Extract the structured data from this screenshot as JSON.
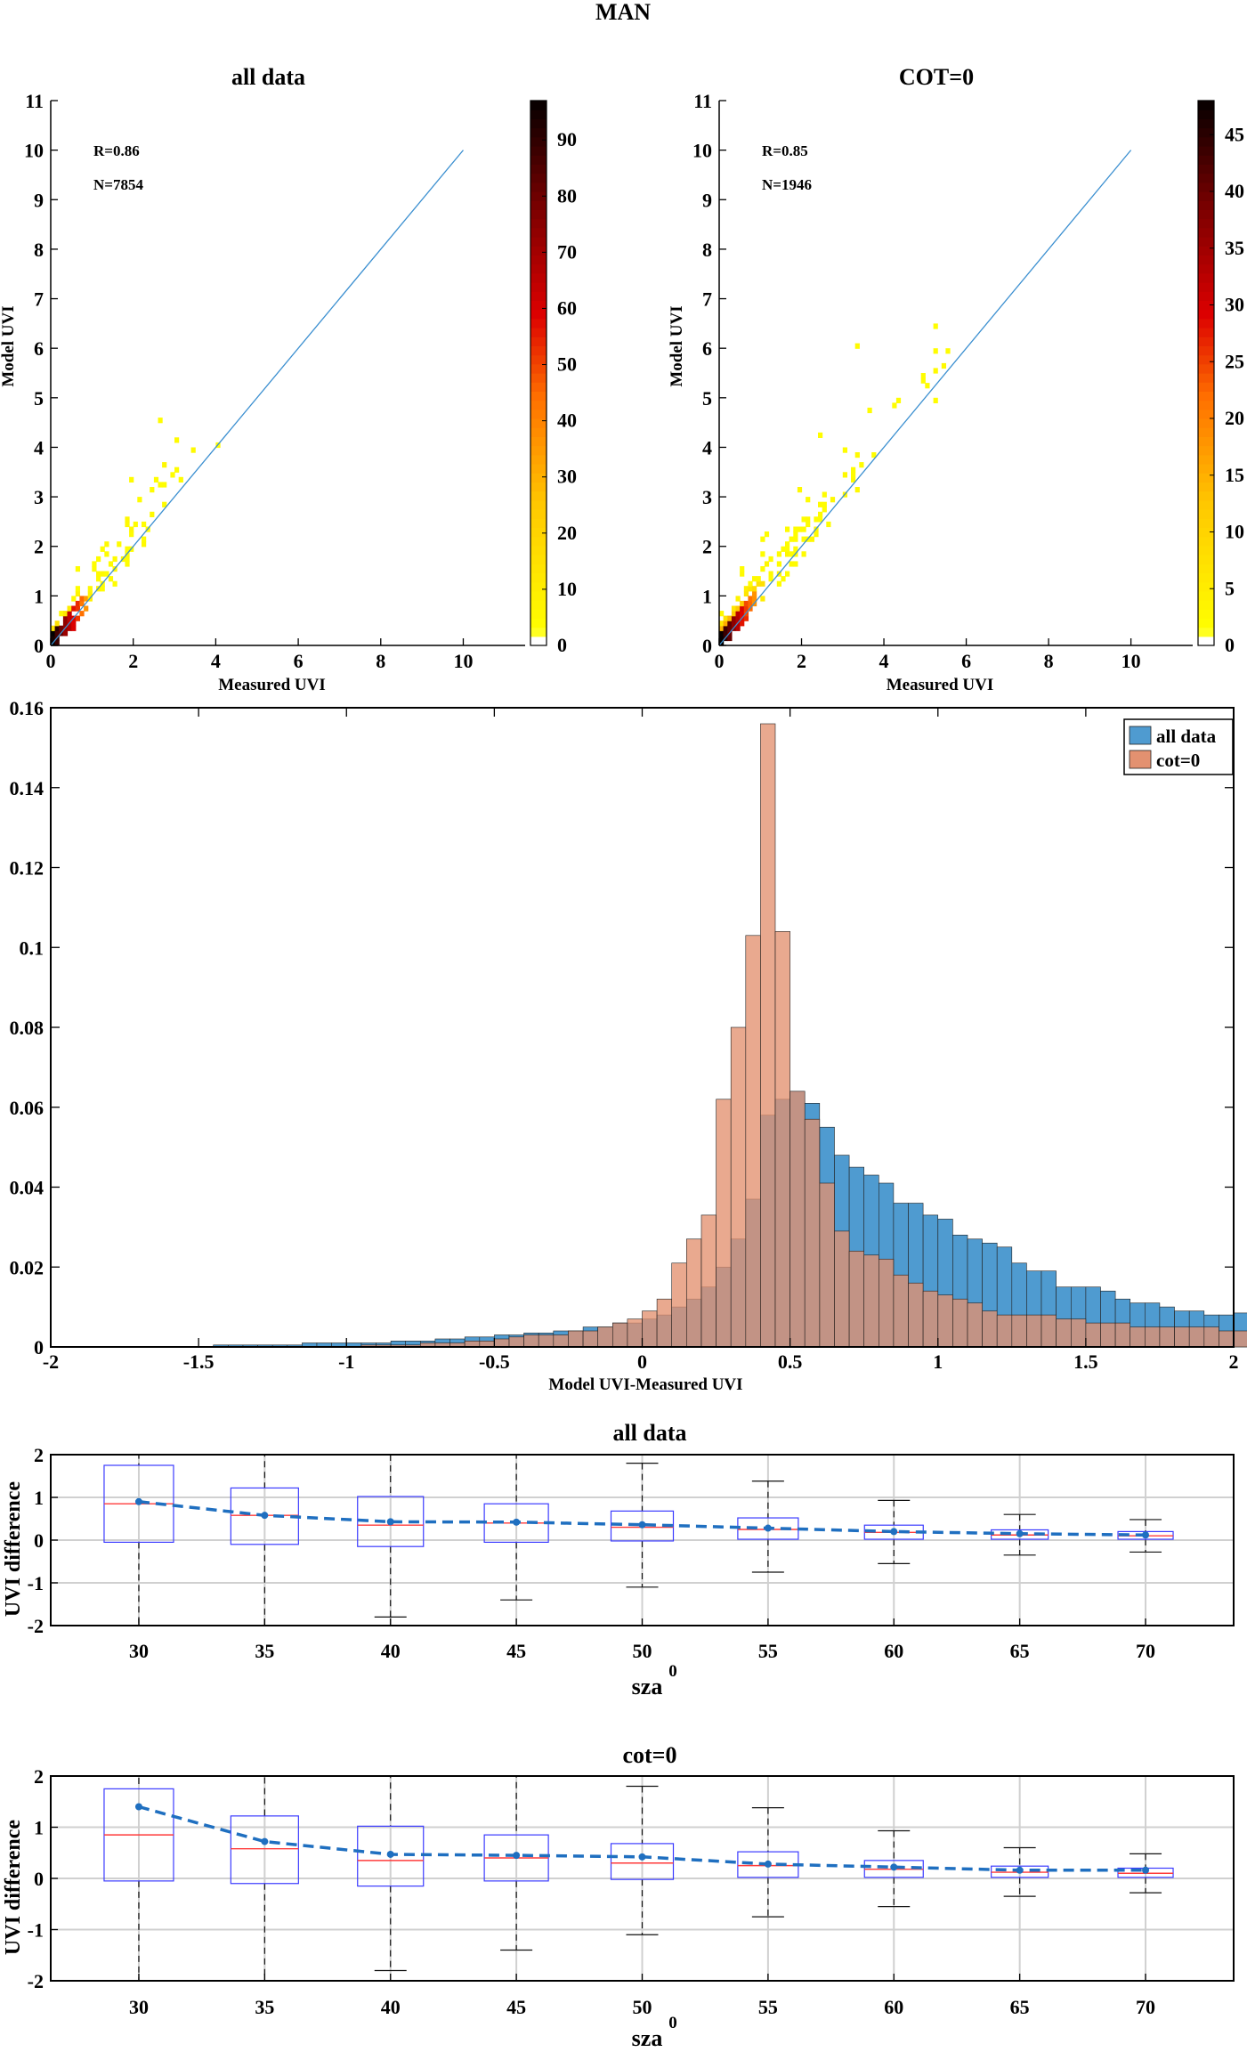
{
  "figure_title": "MAN",
  "chart_data": [
    {
      "type": "heatmap",
      "title": "all data",
      "xlabel": "Measured UVI",
      "ylabel": "Model UVI",
      "xlim": [
        0,
        11.5
      ],
      "ylim": [
        0,
        11
      ],
      "xticks": [
        "0",
        "2",
        "4",
        "6",
        "8",
        "10"
      ],
      "yticks": [
        "0",
        "1",
        "2",
        "3",
        "4",
        "5",
        "6",
        "7",
        "8",
        "9",
        "10",
        "11"
      ],
      "annotations": [
        "R=0.86",
        "N=7854"
      ],
      "colorbar": {
        "min": 0,
        "max": 97,
        "ticks": [
          "0",
          "10",
          "20",
          "30",
          "40",
          "50",
          "60",
          "70",
          "80",
          "90"
        ]
      },
      "one_to_one_line": [
        [
          0,
          0
        ],
        [
          10,
          10
        ]
      ],
      "grid": false
    },
    {
      "type": "heatmap",
      "title": "COT=0",
      "xlabel": "Measured UVI",
      "ylabel": "Model UVI",
      "xlim": [
        0,
        11.5
      ],
      "ylim": [
        0,
        11
      ],
      "xticks": [
        "0",
        "2",
        "4",
        "6",
        "8",
        "10"
      ],
      "yticks": [
        "0",
        "1",
        "2",
        "3",
        "4",
        "5",
        "6",
        "7",
        "8",
        "9",
        "10",
        "11"
      ],
      "annotations": [
        "R=0.85",
        "N=1946"
      ],
      "colorbar": {
        "min": 0,
        "max": 48,
        "ticks": [
          "0",
          "5",
          "10",
          "15",
          "20",
          "25",
          "30",
          "35",
          "40",
          "45"
        ]
      },
      "one_to_one_line": [
        [
          0,
          0
        ],
        [
          10,
          10
        ]
      ],
      "grid": false
    },
    {
      "type": "bar",
      "title": "",
      "xlabel": "Model UVI-Measured UVI",
      "ylabel": "",
      "xlim": [
        -2,
        2
      ],
      "ylim": [
        0,
        0.16
      ],
      "bin_width": 0.05,
      "xticks": [
        "-2",
        "-1.5",
        "-1",
        "-0.5",
        "0",
        "0.5",
        "1",
        "1.5",
        "2"
      ],
      "yticks": [
        "0",
        "0.02",
        "0.04",
        "0.06",
        "0.08",
        "0.1",
        "0.12",
        "0.14",
        "0.16"
      ],
      "legend_position": "top-right",
      "series": [
        {
          "name": "all data",
          "color": "#4f9bd0",
          "values": [
            0,
            0,
            0,
            0,
            0,
            0,
            0,
            0,
            0,
            0,
            0,
            0.0005,
            0.0005,
            0.0005,
            0.0005,
            0.0005,
            0.0005,
            0.001,
            0.001,
            0.001,
            0.001,
            0.001,
            0.001,
            0.0015,
            0.0015,
            0.0015,
            0.002,
            0.002,
            0.0025,
            0.0025,
            0.003,
            0.003,
            0.0035,
            0.0035,
            0.004,
            0.004,
            0.005,
            0.005,
            0.006,
            0.006,
            0.007,
            0.008,
            0.01,
            0.012,
            0.015,
            0.02,
            0.027,
            0.037,
            0.058,
            0.062,
            0.064,
            0.061,
            0.055,
            0.048,
            0.045,
            0.043,
            0.041,
            0.036,
            0.036,
            0.033,
            0.032,
            0.028,
            0.027,
            0.026,
            0.025,
            0.021,
            0.019,
            0.019,
            0.015,
            0.015,
            0.015,
            0.014,
            0.012,
            0.011,
            0.011,
            0.01,
            0.009,
            0.009,
            0.008,
            0.008,
            0.0085,
            0.007,
            0.007,
            0.0065,
            0.006,
            0.0055,
            0.0055,
            0.005,
            0.0045,
            0.0045
          ]
        },
        {
          "name": "cot=0",
          "color": "#e39170",
          "values": [
            0,
            0,
            0,
            0,
            0,
            0,
            0,
            0,
            0,
            0,
            0,
            0,
            0,
            0,
            0,
            0,
            0,
            0,
            0,
            0,
            0,
            0.0005,
            0.0005,
            0.0005,
            0.0005,
            0.001,
            0.001,
            0.001,
            0.0015,
            0.0015,
            0.002,
            0.0025,
            0.003,
            0.003,
            0.003,
            0.004,
            0.004,
            0.005,
            0.006,
            0.007,
            0.009,
            0.012,
            0.021,
            0.027,
            0.033,
            0.062,
            0.08,
            0.103,
            0.156,
            0.104,
            0.064,
            0.057,
            0.041,
            0.029,
            0.024,
            0.023,
            0.022,
            0.018,
            0.016,
            0.014,
            0.013,
            0.012,
            0.011,
            0.009,
            0.008,
            0.008,
            0.008,
            0.008,
            0.007,
            0.007,
            0.006,
            0.006,
            0.006,
            0.005,
            0.005,
            0.005,
            0.005,
            0.005,
            0.005,
            0.004,
            0.004,
            0.004,
            0.004,
            0.004,
            0.004,
            0.004,
            0.004,
            0.004,
            0.004,
            0.004
          ]
        }
      ]
    },
    {
      "type": "box",
      "title": "all data",
      "xlabel": "sza",
      "xlabel_superscript": "0",
      "ylabel": "UVI difference",
      "ylim": [
        -2,
        2
      ],
      "categories": [
        "30",
        "35",
        "40",
        "45",
        "50",
        "55",
        "60",
        "65",
        "70"
      ],
      "yticks": [
        "-2",
        "-1",
        "0",
        "1",
        "2"
      ],
      "grid": true,
      "boxes": [
        {
          "q1": -0.05,
          "median": 0.85,
          "q3": 1.75,
          "lo": -2.3,
          "hi": 2.8
        },
        {
          "q1": -0.1,
          "median": 0.58,
          "q3": 1.22,
          "lo": -2.3,
          "hi": 2.6
        },
        {
          "q1": -0.15,
          "median": 0.35,
          "q3": 1.02,
          "lo": -1.8,
          "hi": 2.5
        },
        {
          "q1": -0.05,
          "median": 0.4,
          "q3": 0.85,
          "lo": -1.4,
          "hi": 2.3
        },
        {
          "q1": -0.02,
          "median": 0.3,
          "q3": 0.68,
          "lo": -1.1,
          "hi": 1.8
        },
        {
          "q1": 0.02,
          "median": 0.25,
          "q3": 0.52,
          "lo": -0.75,
          "hi": 1.38
        },
        {
          "q1": 0.02,
          "median": 0.18,
          "q3": 0.35,
          "lo": -0.55,
          "hi": 0.93
        },
        {
          "q1": 0.02,
          "median": 0.12,
          "q3": 0.24,
          "lo": -0.35,
          "hi": 0.6
        },
        {
          "q1": 0.02,
          "median": 0.1,
          "q3": 0.2,
          "lo": -0.28,
          "hi": 0.48
        }
      ],
      "mean_line": [
        0.9,
        0.58,
        0.43,
        0.42,
        0.36,
        0.28,
        0.2,
        0.15,
        0.12
      ]
    },
    {
      "type": "box",
      "title": "cot=0",
      "xlabel": "sza",
      "xlabel_superscript": "0",
      "ylabel": "UVI difference",
      "ylim": [
        -2,
        2
      ],
      "categories": [
        "30",
        "35",
        "40",
        "45",
        "50",
        "55",
        "60",
        "65",
        "70"
      ],
      "yticks": [
        "-2",
        "-1",
        "0",
        "1",
        "2"
      ],
      "grid": true,
      "boxes": [
        {
          "q1": -0.05,
          "median": 0.85,
          "q3": 1.75,
          "lo": -2.3,
          "hi": 2.8
        },
        {
          "q1": -0.1,
          "median": 0.58,
          "q3": 1.22,
          "lo": -2.3,
          "hi": 2.6
        },
        {
          "q1": -0.15,
          "median": 0.35,
          "q3": 1.02,
          "lo": -1.8,
          "hi": 2.5
        },
        {
          "q1": -0.05,
          "median": 0.4,
          "q3": 0.85,
          "lo": -1.4,
          "hi": 2.3
        },
        {
          "q1": -0.02,
          "median": 0.3,
          "q3": 0.68,
          "lo": -1.1,
          "hi": 1.8
        },
        {
          "q1": 0.02,
          "median": 0.25,
          "q3": 0.52,
          "lo": -0.75,
          "hi": 1.38
        },
        {
          "q1": 0.02,
          "median": 0.18,
          "q3": 0.35,
          "lo": -0.55,
          "hi": 0.93
        },
        {
          "q1": 0.02,
          "median": 0.12,
          "q3": 0.24,
          "lo": -0.35,
          "hi": 0.6
        },
        {
          "q1": 0.02,
          "median": 0.1,
          "q3": 0.2,
          "lo": -0.28,
          "hi": 0.48
        }
      ],
      "mean_line": [
        1.4,
        0.72,
        0.47,
        0.45,
        0.42,
        0.28,
        0.22,
        0.16,
        0.16
      ]
    }
  ]
}
